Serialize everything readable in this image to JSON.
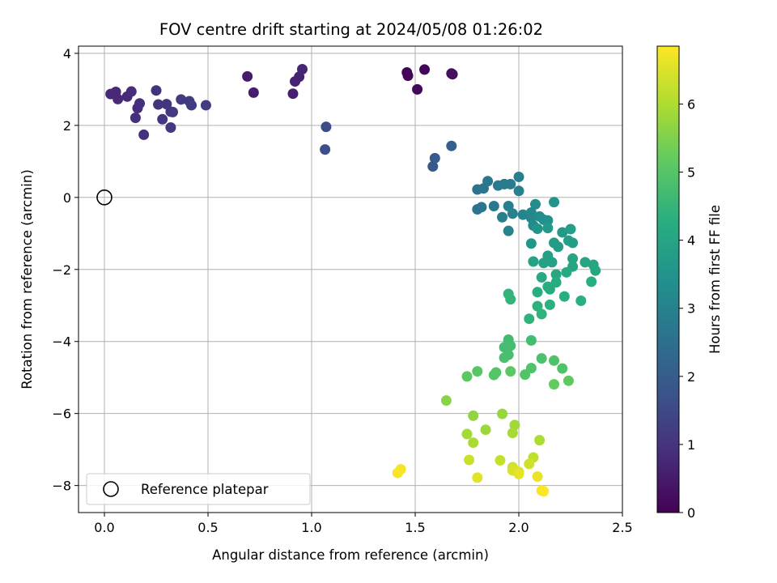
{
  "chart_data": {
    "type": "scatter",
    "title": "FOV centre drift starting at 2024/05/08 01:26:02",
    "xlabel": "Angular distance from reference (arcmin)",
    "ylabel": "Rotation from reference (arcmin)",
    "xlim": [
      -0.125,
      2.5
    ],
    "ylim": [
      -8.75,
      4.2
    ],
    "xticks": [
      0.0,
      0.5,
      1.0,
      1.5,
      2.0,
      2.5
    ],
    "xtick_labels": [
      "0.0",
      "0.5",
      "1.0",
      "1.5",
      "2.0",
      "2.5"
    ],
    "yticks": [
      -8,
      -6,
      -4,
      -2,
      0,
      2,
      4
    ],
    "ytick_labels": [
      "−8",
      "−6",
      "−4",
      "−2",
      "0",
      "2",
      "4"
    ],
    "grid": true,
    "colormap": "viridis",
    "colorbar": {
      "label": "Hours from first FF file",
      "range": [
        0,
        6.85
      ],
      "ticks": [
        0,
        1,
        2,
        3,
        4,
        5,
        6
      ],
      "tick_labels": [
        "0",
        "1",
        "2",
        "3",
        "4",
        "5",
        "6"
      ]
    },
    "legend": {
      "placement": "lower-left",
      "entries": [
        {
          "label": "Reference platepar",
          "marker": "open-circle"
        }
      ]
    },
    "reference_point": {
      "x": 0.0,
      "y": 0.0
    },
    "points": [
      [
        1.46,
        3.47,
        0.05
      ],
      [
        1.465,
        3.38,
        0.08
      ],
      [
        1.545,
        3.55,
        0.1
      ],
      [
        1.51,
        3.0,
        0.15
      ],
      [
        1.68,
        3.42,
        0.2
      ],
      [
        1.675,
        3.44,
        0.25
      ],
      [
        0.69,
        3.36,
        0.5
      ],
      [
        0.72,
        2.91,
        0.55
      ],
      [
        0.91,
        2.88,
        0.6
      ],
      [
        0.92,
        3.22,
        0.62
      ],
      [
        0.94,
        3.35,
        0.65
      ],
      [
        0.955,
        3.56,
        0.7
      ],
      [
        0.03,
        2.87,
        0.75
      ],
      [
        0.055,
        2.93,
        0.78
      ],
      [
        0.065,
        2.73,
        0.8
      ],
      [
        0.11,
        2.8,
        0.82
      ],
      [
        0.13,
        2.94,
        0.85
      ],
      [
        0.16,
        2.48,
        0.88
      ],
      [
        0.17,
        2.61,
        0.9
      ],
      [
        0.15,
        2.21,
        0.92
      ],
      [
        0.19,
        1.74,
        0.95
      ],
      [
        0.25,
        2.97,
        0.98
      ],
      [
        0.26,
        2.58,
        1.0
      ],
      [
        0.28,
        2.17,
        1.02
      ],
      [
        0.3,
        2.59,
        1.05
      ],
      [
        0.32,
        2.38,
        1.08
      ],
      [
        0.33,
        2.37,
        1.1
      ],
      [
        0.32,
        1.94,
        1.12
      ],
      [
        0.37,
        2.72,
        1.15
      ],
      [
        0.41,
        2.67,
        1.18
      ],
      [
        0.42,
        2.56,
        1.2
      ],
      [
        0.49,
        2.56,
        1.22
      ],
      [
        1.07,
        1.96,
        1.6
      ],
      [
        1.065,
        1.33,
        1.65
      ],
      [
        1.585,
        0.86,
        1.9
      ],
      [
        1.595,
        1.09,
        1.95
      ],
      [
        1.675,
        1.43,
        2.05
      ],
      [
        1.8,
        0.22,
        2.6
      ],
      [
        1.83,
        0.25,
        2.65
      ],
      [
        1.85,
        0.45,
        2.7
      ],
      [
        1.9,
        0.33,
        2.75
      ],
      [
        1.93,
        0.37,
        2.8
      ],
      [
        1.96,
        0.37,
        2.85
      ],
      [
        2.0,
        0.57,
        2.9
      ],
      [
        2.0,
        0.18,
        2.95
      ],
      [
        1.8,
        -0.33,
        2.6
      ],
      [
        1.82,
        -0.27,
        2.65
      ],
      [
        1.88,
        -0.24,
        2.7
      ],
      [
        1.92,
        -0.55,
        2.9
      ],
      [
        1.95,
        -0.24,
        2.95
      ],
      [
        1.97,
        -0.45,
        3.0
      ],
      [
        1.95,
        -0.93,
        3.05
      ],
      [
        2.02,
        -0.48,
        3.1
      ],
      [
        2.06,
        -0.57,
        3.15
      ],
      [
        2.06,
        -0.42,
        3.2
      ],
      [
        2.07,
        -0.78,
        3.25
      ],
      [
        2.08,
        -0.19,
        3.3
      ],
      [
        2.1,
        -0.53,
        3.35
      ],
      [
        2.12,
        -0.62,
        3.4
      ],
      [
        2.14,
        -0.64,
        3.45
      ],
      [
        2.17,
        -0.13,
        3.5
      ],
      [
        2.09,
        -0.87,
        3.55
      ],
      [
        2.06,
        -1.28,
        3.6
      ],
      [
        2.14,
        -0.85,
        3.65
      ],
      [
        2.21,
        -0.97,
        3.7
      ],
      [
        2.19,
        -1.37,
        3.75
      ],
      [
        2.17,
        -1.26,
        3.78
      ],
      [
        2.24,
        -1.2,
        3.8
      ],
      [
        2.25,
        -0.88,
        3.82
      ],
      [
        2.26,
        -1.26,
        3.85
      ],
      [
        2.14,
        -1.62,
        3.88
      ],
      [
        2.16,
        -1.8,
        3.9
      ],
      [
        2.12,
        -1.82,
        3.92
      ],
      [
        2.07,
        -1.78,
        3.95
      ],
      [
        2.26,
        -1.7,
        3.98
      ],
      [
        2.26,
        -1.92,
        4.0
      ],
      [
        2.32,
        -1.8,
        4.02
      ],
      [
        2.36,
        -1.87,
        4.05
      ],
      [
        2.37,
        -2.03,
        4.08
      ],
      [
        2.18,
        -2.14,
        4.1
      ],
      [
        2.11,
        -2.22,
        4.12
      ],
      [
        2.23,
        -2.08,
        4.15
      ],
      [
        2.18,
        -2.36,
        4.18
      ],
      [
        2.14,
        -2.48,
        4.2
      ],
      [
        2.15,
        -2.55,
        4.22
      ],
      [
        2.09,
        -2.63,
        4.25
      ],
      [
        2.35,
        -2.34,
        4.28
      ],
      [
        2.22,
        -2.75,
        4.3
      ],
      [
        2.3,
        -2.87,
        4.32
      ],
      [
        2.15,
        -2.98,
        4.35
      ],
      [
        2.09,
        -3.02,
        4.38
      ],
      [
        2.11,
        -3.24,
        4.4
      ],
      [
        2.05,
        -3.37,
        4.42
      ],
      [
        1.95,
        -2.68,
        4.45
      ],
      [
        1.96,
        -2.83,
        4.48
      ],
      [
        1.95,
        -3.95,
        4.7
      ],
      [
        2.06,
        -3.97,
        4.72
      ],
      [
        1.93,
        -4.16,
        4.75
      ],
      [
        1.96,
        -4.12,
        4.78
      ],
      [
        1.95,
        -4.37,
        4.8
      ],
      [
        1.93,
        -4.45,
        4.82
      ],
      [
        2.11,
        -4.47,
        4.85
      ],
      [
        2.17,
        -4.53,
        4.88
      ],
      [
        2.06,
        -4.74,
        4.9
      ],
      [
        2.21,
        -4.75,
        4.92
      ],
      [
        2.03,
        -4.92,
        4.95
      ],
      [
        1.89,
        -4.86,
        4.98
      ],
      [
        1.88,
        -4.93,
        5.0
      ],
      [
        1.8,
        -4.83,
        5.05
      ],
      [
        1.75,
        -4.97,
        5.1
      ],
      [
        1.96,
        -4.83,
        5.12
      ],
      [
        2.24,
        -5.09,
        5.15
      ],
      [
        2.17,
        -5.19,
        5.2
      ],
      [
        1.65,
        -5.64,
        5.6
      ],
      [
        1.78,
        -6.06,
        5.7
      ],
      [
        1.92,
        -6.01,
        5.75
      ],
      [
        1.84,
        -6.45,
        5.8
      ],
      [
        1.98,
        -6.32,
        5.85
      ],
      [
        1.75,
        -6.57,
        5.9
      ],
      [
        1.97,
        -6.54,
        5.92
      ],
      [
        1.78,
        -6.81,
        5.95
      ],
      [
        2.1,
        -6.74,
        6.0
      ],
      [
        2.07,
        -7.22,
        6.2
      ],
      [
        1.91,
        -7.3,
        6.25
      ],
      [
        1.76,
        -7.29,
        6.3
      ],
      [
        2.05,
        -7.4,
        6.35
      ],
      [
        1.97,
        -7.49,
        6.4
      ],
      [
        1.97,
        -7.58,
        6.45
      ],
      [
        2.0,
        -7.62,
        6.5
      ],
      [
        1.8,
        -7.78,
        6.55
      ],
      [
        2.0,
        -7.68,
        6.6
      ],
      [
        2.09,
        -7.75,
        6.65
      ],
      [
        1.43,
        -7.55,
        6.75
      ],
      [
        1.415,
        -7.65,
        6.78
      ],
      [
        2.11,
        -8.14,
        6.8
      ],
      [
        2.12,
        -8.16,
        6.82
      ]
    ]
  }
}
